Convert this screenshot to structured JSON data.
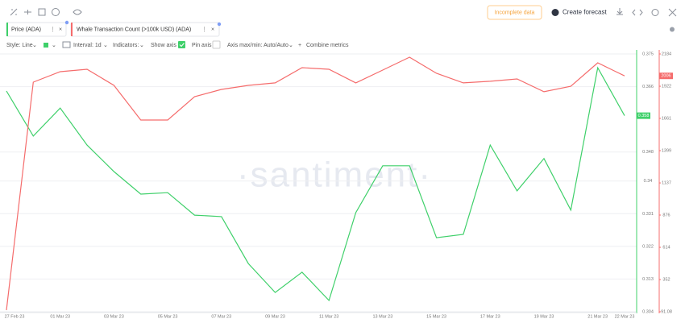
{
  "ui": {
    "incomplete": "Incomplete data",
    "forecast": "Create forecast",
    "style": "Style: Line",
    "interval": "Interval: 1d",
    "indicators": "Indicators:",
    "show_axis": "Show axis",
    "pin_axis": "Pin axis",
    "axis_minmax": "Axis max/min: Auto/Auto",
    "combine": "Combine metrics",
    "watermark": "·santiment·"
  },
  "chart_data": {
    "type": "line",
    "categories": [
      "27 Feb 23",
      null,
      "01 Mar 23",
      null,
      "03 Mar 23",
      null,
      "05 Mar 23",
      null,
      "07 Mar 23",
      null,
      "09 Mar 23",
      null,
      "11 Mar 23",
      null,
      "13 Mar 23",
      null,
      "15 Mar 23",
      null,
      "17 Mar 23",
      null,
      "19 Mar 23",
      null,
      "21 Mar 23",
      "22 Mar 23"
    ],
    "series": [
      {
        "name": "Price (ADA)",
        "color": "#3fd06a",
        "values": [
          0.3648,
          0.3524,
          0.3601,
          0.3499,
          0.3426,
          0.3364,
          0.3368,
          0.3306,
          0.3302,
          0.3173,
          0.3093,
          0.3149,
          0.3071,
          0.3313,
          0.3442,
          0.3442,
          0.3244,
          0.3253,
          0.3499,
          0.3373,
          0.3462,
          0.332,
          0.3712,
          0.358
        ]
      },
      {
        "name": "Whale Transaction Count (>100k USD) (ADA)",
        "color": "#f56c6c",
        "axis": "y2",
        "values": [
          104,
          1955,
          2040,
          2060,
          1929,
          1648,
          1648,
          1837,
          1896,
          1929,
          1949,
          2073,
          2060,
          1949,
          2053,
          2158,
          2027,
          1949,
          1962,
          1981,
          1877,
          1922,
          2112,
          2006
        ]
      }
    ],
    "ylim": [
      0.304,
      0.375
    ],
    "yticks": [
      0.375,
      0.366,
      0.348,
      0.34,
      0.331,
      0.322,
      0.313,
      0.304
    ],
    "y2lim": [
      91.08,
      2184
    ],
    "y2ticks": [
      2184,
      1922,
      1661,
      1399,
      1137,
      876,
      614,
      352,
      91.08
    ],
    "grid": true
  }
}
